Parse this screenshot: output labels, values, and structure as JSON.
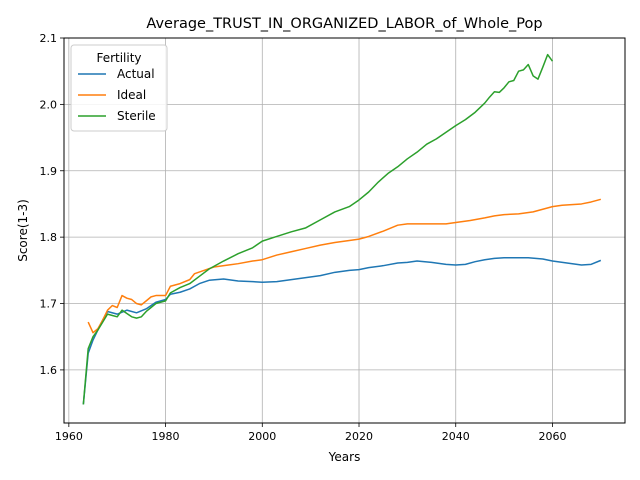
{
  "chart_data": {
    "type": "line",
    "title": "Average_TRUST_IN_ORGANIZED_LABOR_of_Whole_Pop",
    "xlabel": "Years",
    "ylabel": "Score(1-3)",
    "xlim": [
      1959,
      2075
    ],
    "ylim": [
      1.52,
      2.1
    ],
    "xticks": [
      1960,
      1980,
      2000,
      2020,
      2040,
      2060
    ],
    "yticks": [
      1.6,
      1.7,
      1.8,
      1.9,
      2.0,
      2.1
    ],
    "xtick_labels": [
      "1960",
      "1980",
      "2000",
      "2020",
      "2040",
      "2060"
    ],
    "ytick_labels": [
      "1.6",
      "1.7",
      "1.8",
      "1.9",
      "2.0",
      "2.1"
    ],
    "grid": true,
    "legend": {
      "title": "Fertility",
      "placement": "top-left"
    },
    "series": [
      {
        "name": "Actual",
        "color": "#1f77b4",
        "x": [
          1963,
          1964,
          1965,
          1966,
          1967,
          1968,
          1970,
          1972,
          1974,
          1976,
          1978,
          1980,
          1981,
          1983,
          1985,
          1987,
          1989,
          1992,
          1995,
          1998,
          2000,
          2003,
          2006,
          2009,
          2012,
          2015,
          2018,
          2020,
          2022,
          2025,
          2028,
          2030,
          2032,
          2035,
          2038,
          2040,
          2042,
          2044,
          2046,
          2048,
          2050,
          2052,
          2055,
          2058,
          2060,
          2063,
          2066,
          2068,
          2070
        ],
        "values": [
          1.548,
          1.625,
          1.645,
          1.66,
          1.675,
          1.688,
          1.684,
          1.69,
          1.686,
          1.692,
          1.702,
          1.706,
          1.714,
          1.717,
          1.722,
          1.73,
          1.735,
          1.737,
          1.734,
          1.733,
          1.732,
          1.733,
          1.736,
          1.739,
          1.742,
          1.747,
          1.75,
          1.751,
          1.754,
          1.757,
          1.761,
          1.762,
          1.764,
          1.762,
          1.759,
          1.758,
          1.759,
          1.763,
          1.766,
          1.768,
          1.769,
          1.769,
          1.769,
          1.767,
          1.764,
          1.761,
          1.758,
          1.759,
          1.765
        ]
      },
      {
        "name": "Ideal",
        "color": "#ff7f0e",
        "x": [
          1964,
          1965,
          1966,
          1967,
          1968,
          1969,
          1970,
          1971,
          1972,
          1973,
          1974,
          1975,
          1976,
          1977,
          1978,
          1980,
          1981,
          1983,
          1985,
          1986,
          1988,
          1990,
          1993,
          1995,
          1998,
          2000,
          2003,
          2006,
          2009,
          2012,
          2015,
          2018,
          2020,
          2022,
          2025,
          2028,
          2030,
          2032,
          2035,
          2038,
          2040,
          2043,
          2046,
          2048,
          2050,
          2053,
          2056,
          2058,
          2060,
          2062,
          2064,
          2066,
          2068,
          2070
        ],
        "values": [
          1.672,
          1.656,
          1.662,
          1.675,
          1.69,
          1.697,
          1.694,
          1.712,
          1.708,
          1.706,
          1.7,
          1.698,
          1.704,
          1.71,
          1.712,
          1.712,
          1.726,
          1.73,
          1.736,
          1.745,
          1.75,
          1.755,
          1.758,
          1.76,
          1.764,
          1.766,
          1.773,
          1.778,
          1.783,
          1.788,
          1.792,
          1.795,
          1.797,
          1.801,
          1.809,
          1.818,
          1.82,
          1.82,
          1.82,
          1.82,
          1.822,
          1.825,
          1.829,
          1.832,
          1.834,
          1.835,
          1.838,
          1.842,
          1.846,
          1.848,
          1.849,
          1.85,
          1.853,
          1.857
        ]
      },
      {
        "name": "Sterile",
        "color": "#2ca02c",
        "x": [
          1963,
          1964,
          1965,
          1966,
          1967,
          1968,
          1969,
          1970,
          1971,
          1972,
          1973,
          1974,
          1975,
          1976,
          1977,
          1978,
          1980,
          1981,
          1983,
          1985,
          1987,
          1989,
          1992,
          1995,
          1998,
          2000,
          2003,
          2006,
          2009,
          2012,
          2015,
          2018,
          2020,
          2022,
          2024,
          2026,
          2028,
          2030,
          2032,
          2034,
          2036,
          2038,
          2040,
          2042,
          2044,
          2046,
          2047,
          2048,
          2049,
          2050,
          2051,
          2052,
          2053,
          2054,
          2055,
          2056,
          2057,
          2058,
          2059,
          2060
        ],
        "values": [
          1.548,
          1.632,
          1.65,
          1.66,
          1.672,
          1.684,
          1.682,
          1.68,
          1.69,
          1.685,
          1.68,
          1.678,
          1.68,
          1.688,
          1.694,
          1.7,
          1.704,
          1.716,
          1.724,
          1.73,
          1.741,
          1.752,
          1.764,
          1.775,
          1.784,
          1.794,
          1.801,
          1.808,
          1.814,
          1.826,
          1.838,
          1.846,
          1.856,
          1.868,
          1.883,
          1.896,
          1.906,
          1.918,
          1.928,
          1.94,
          1.948,
          1.958,
          1.968,
          1.977,
          1.988,
          2.002,
          2.011,
          2.019,
          2.018,
          2.025,
          2.034,
          2.036,
          2.05,
          2.052,
          2.06,
          2.043,
          2.038,
          2.056,
          2.075,
          2.065
        ]
      }
    ]
  }
}
